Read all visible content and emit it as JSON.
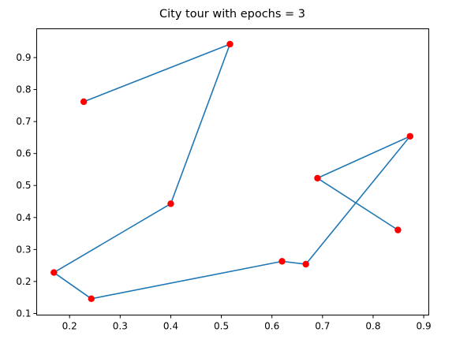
{
  "chart_data": {
    "type": "scatter",
    "title": "City tour with epochs = 3",
    "xlabel": "",
    "ylabel": "",
    "xlim": [
      0.135,
      0.91
    ],
    "ylim": [
      0.095,
      0.99
    ],
    "xticks": [
      0.2,
      0.3,
      0.4,
      0.5,
      0.6,
      0.7,
      0.8,
      0.9
    ],
    "yticks": [
      0.1,
      0.2,
      0.3,
      0.4,
      0.5,
      0.6,
      0.7,
      0.8,
      0.9
    ],
    "xtick_labels": [
      "0.2",
      "0.3",
      "0.4",
      "0.5",
      "0.6",
      "0.7",
      "0.8",
      "0.9"
    ],
    "ytick_labels": [
      "0.1",
      "0.2",
      "0.3",
      "0.4",
      "0.5",
      "0.6",
      "0.7",
      "0.8",
      "0.9"
    ],
    "grid": false,
    "series": [
      {
        "kind": "line",
        "color": "#1f77b4",
        "x": [
          0.228,
          0.517,
          0.4,
          0.169,
          0.243,
          0.62,
          0.667,
          0.873,
          0.69,
          0.849
        ],
        "y": [
          0.762,
          0.942,
          0.443,
          0.228,
          0.146,
          0.263,
          0.254,
          0.654,
          0.523,
          0.361
        ]
      },
      {
        "kind": "points",
        "color": "#ff0000",
        "x": [
          0.228,
          0.517,
          0.4,
          0.169,
          0.243,
          0.62,
          0.667,
          0.873,
          0.69,
          0.849
        ],
        "y": [
          0.762,
          0.942,
          0.443,
          0.228,
          0.146,
          0.263,
          0.254,
          0.654,
          0.523,
          0.361
        ]
      }
    ]
  }
}
